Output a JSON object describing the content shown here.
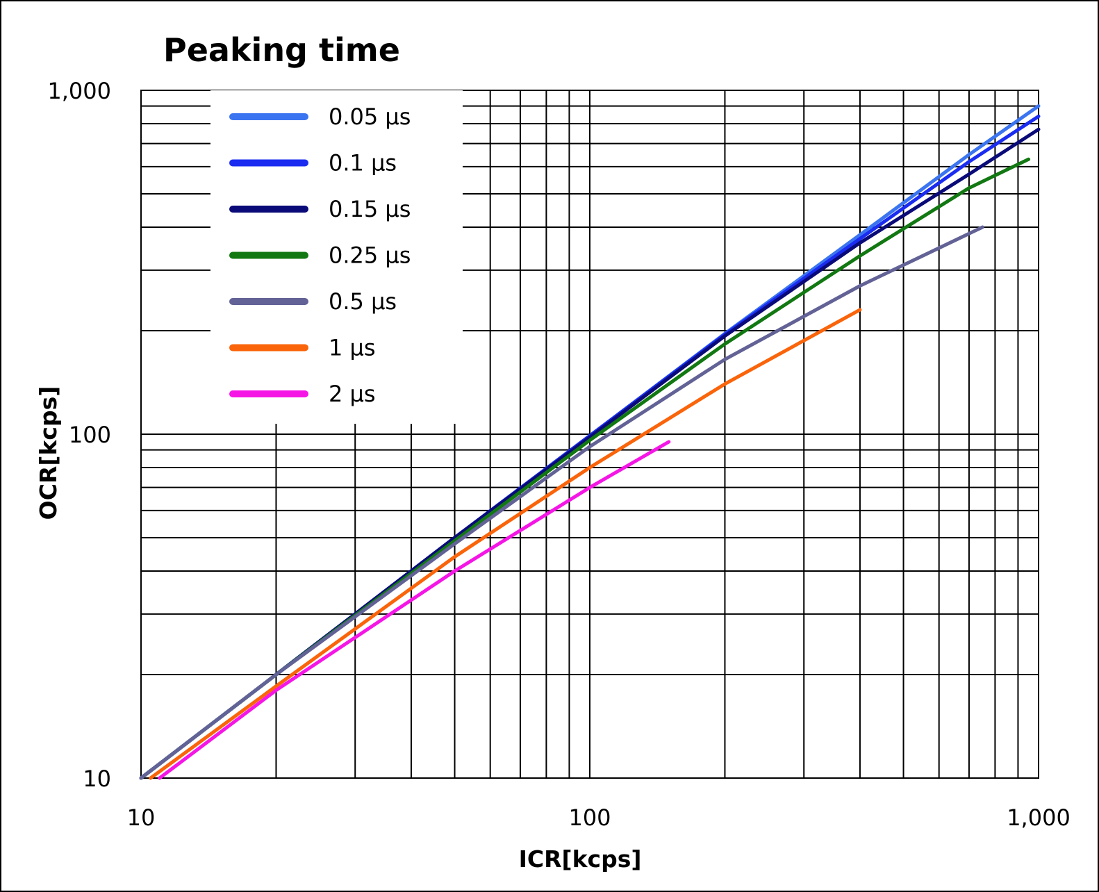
{
  "chart_data": {
    "type": "line",
    "title": "Peaking time",
    "xlabel": "ICR[kcps]",
    "ylabel": "OCR[kcps]",
    "xscale": "log",
    "yscale": "log",
    "xlim": [
      10,
      1000
    ],
    "ylim": [
      10,
      1000
    ],
    "xticks": [
      10,
      100,
      1000
    ],
    "xtick_labels": [
      "10",
      "100",
      "1,000"
    ],
    "yticks": [
      10,
      100,
      1000
    ],
    "ytick_labels": [
      "10",
      "100",
      "1,000"
    ],
    "grid": true,
    "legend_position": "top-left",
    "series": [
      {
        "name": "0.05 μs",
        "color": "#3b74f0",
        "x": [
          10,
          20,
          50,
          100,
          200,
          400,
          700,
          1000
        ],
        "y": [
          10,
          20,
          50,
          99,
          196,
          380,
          650,
          900
        ]
      },
      {
        "name": "0.1 μs",
        "color": "#1a2cf0",
        "x": [
          10,
          20,
          50,
          100,
          200,
          400,
          700,
          1000
        ],
        "y": [
          10,
          20,
          50,
          99,
          195,
          370,
          620,
          840
        ]
      },
      {
        "name": "0.15 μs",
        "color": "#0a0a78",
        "x": [
          10,
          20,
          50,
          100,
          200,
          400,
          700,
          1000
        ],
        "y": [
          10,
          20,
          50,
          98,
          193,
          360,
          570,
          770
        ]
      },
      {
        "name": "0.25 μs",
        "color": "#127812",
        "x": [
          10,
          20,
          50,
          100,
          200,
          400,
          700,
          950
        ],
        "y": [
          10,
          20,
          49,
          96,
          183,
          330,
          520,
          630
        ]
      },
      {
        "name": "0.5 μs",
        "color": "#626296",
        "x": [
          10,
          20,
          50,
          100,
          200,
          400,
          750
        ],
        "y": [
          10,
          20,
          48,
          92,
          165,
          270,
          400
        ]
      },
      {
        "name": "1 μs",
        "color": "#fa640a",
        "x": [
          10.5,
          20,
          50,
          100,
          200,
          400
        ],
        "y": [
          10,
          18.5,
          44,
          80,
          140,
          230
        ]
      },
      {
        "name": "2 μs",
        "color": "#f516e6",
        "x": [
          11,
          20,
          50,
          100,
          150
        ],
        "y": [
          10,
          18,
          40,
          70,
          95
        ]
      }
    ]
  }
}
